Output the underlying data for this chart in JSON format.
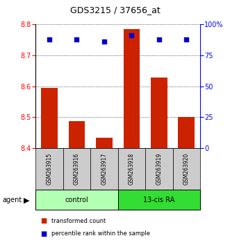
{
  "title": "GDS3215 / 37656_at",
  "samples": [
    "GSM263915",
    "GSM263916",
    "GSM263917",
    "GSM263918",
    "GSM263919",
    "GSM263920"
  ],
  "red_values": [
    8.595,
    8.487,
    8.435,
    8.785,
    8.628,
    8.502
  ],
  "blue_values": [
    88,
    88,
    86,
    91,
    88,
    88
  ],
  "ymin": 8.4,
  "ymax": 8.8,
  "y2min": 0,
  "y2max": 100,
  "yticks": [
    8.4,
    8.5,
    8.6,
    8.7,
    8.8
  ],
  "y2ticks": [
    0,
    25,
    50,
    75,
    100
  ],
  "y2ticklabels": [
    "0",
    "25",
    "50",
    "75",
    "100%"
  ],
  "groups": [
    {
      "label": "control",
      "indices": [
        0,
        1,
        2
      ],
      "color": "#b3ffb3"
    },
    {
      "label": "13-cis RA",
      "indices": [
        3,
        4,
        5
      ],
      "color": "#33dd33"
    }
  ],
  "bar_color": "#cc2200",
  "dot_color": "#0000cc",
  "bar_width": 0.6,
  "dot_size": 18,
  "background_color": "#ffffff",
  "sample_bg_color": "#cccccc",
  "agent_label": "agent",
  "legend_items": [
    "transformed count",
    "percentile rank within the sample"
  ],
  "legend_colors": [
    "#cc2200",
    "#0000cc"
  ]
}
